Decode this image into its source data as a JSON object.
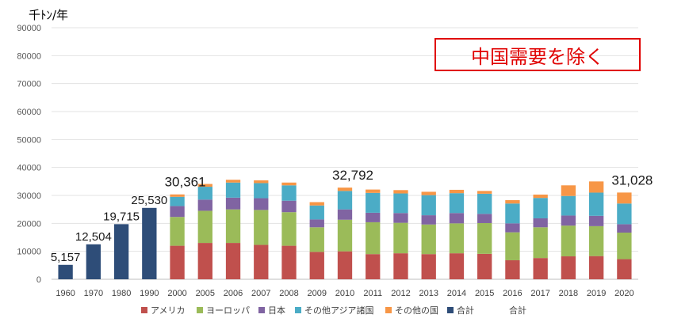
{
  "unit_label": "千ﾄﾝ/年",
  "callout": "中国需要を除く",
  "extra_legend_text": "合計",
  "chart_data": {
    "type": "bar",
    "stacked": true,
    "categories": [
      "1960",
      "1970",
      "1980",
      "1990",
      "2000",
      "2005",
      "2006",
      "2007",
      "2008",
      "2009",
      "2010",
      "2011",
      "2012",
      "2013",
      "2014",
      "2015",
      "2016",
      "2017",
      "2018",
      "2019",
      "2020"
    ],
    "ylim": [
      0,
      90000
    ],
    "yticks": [
      "0",
      "10000",
      "20000",
      "30000",
      "40000",
      "50000",
      "60000",
      "70000",
      "80000",
      "90000"
    ],
    "grid": true,
    "legend_position": "bottom",
    "series": [
      {
        "name": "アメリカ",
        "color": "#c0504d",
        "values": [
          0,
          0,
          0,
          0,
          12000,
          13000,
          13000,
          12300,
          12000,
          9800,
          10000,
          9000,
          9300,
          9000,
          9300,
          9100,
          6800,
          7600,
          8200,
          8300,
          7200
        ]
      },
      {
        "name": "ヨーロッパ",
        "color": "#9bbb59",
        "values": [
          0,
          0,
          0,
          0,
          10300,
          11500,
          12000,
          12500,
          12000,
          8800,
          11300,
          11400,
          10900,
          10600,
          10700,
          11000,
          10000,
          11000,
          11000,
          10700,
          9500
        ]
      },
      {
        "name": "日本",
        "color": "#8064a2",
        "values": [
          0,
          0,
          0,
          0,
          3900,
          4000,
          4200,
          4200,
          4100,
          2800,
          3700,
          3400,
          3500,
          3300,
          3700,
          3300,
          3200,
          3200,
          3600,
          3700,
          3000
        ]
      },
      {
        "name": "その他アジア諸国",
        "color": "#4bacc6",
        "values": [
          0,
          0,
          0,
          0,
          3300,
          4600,
          5400,
          5400,
          5500,
          5000,
          6600,
          7100,
          7000,
          7200,
          7100,
          7200,
          7100,
          7300,
          7000,
          8300,
          7400
        ]
      },
      {
        "name": "その他の国",
        "color": "#f79646",
        "values": [
          0,
          0,
          0,
          0,
          861,
          1000,
          1000,
          1000,
          1000,
          1200,
          1192,
          1200,
          1200,
          1200,
          1200,
          1000,
          1200,
          1200,
          3800,
          4000,
          3928
        ]
      },
      {
        "name": "合計",
        "color": "#2e4d78",
        "values": [
          5157,
          12504,
          19715,
          25530,
          0,
          0,
          0,
          0,
          0,
          0,
          0,
          0,
          0,
          0,
          0,
          0,
          0,
          0,
          0,
          0,
          0
        ]
      }
    ],
    "data_labels": [
      {
        "category": "1960",
        "text": "5,157",
        "value": 5157
      },
      {
        "category": "1970",
        "text": "12,504",
        "value": 12504
      },
      {
        "category": "1980",
        "text": "19,715",
        "value": 19715
      },
      {
        "category": "1990",
        "text": "25,530",
        "value": 25530
      },
      {
        "category": "2000",
        "text": "30,361",
        "value": 30361
      },
      {
        "category": "2010",
        "text": "32,792",
        "value": 32792
      },
      {
        "category": "2020",
        "text": "31,028",
        "value": 31028
      }
    ]
  }
}
